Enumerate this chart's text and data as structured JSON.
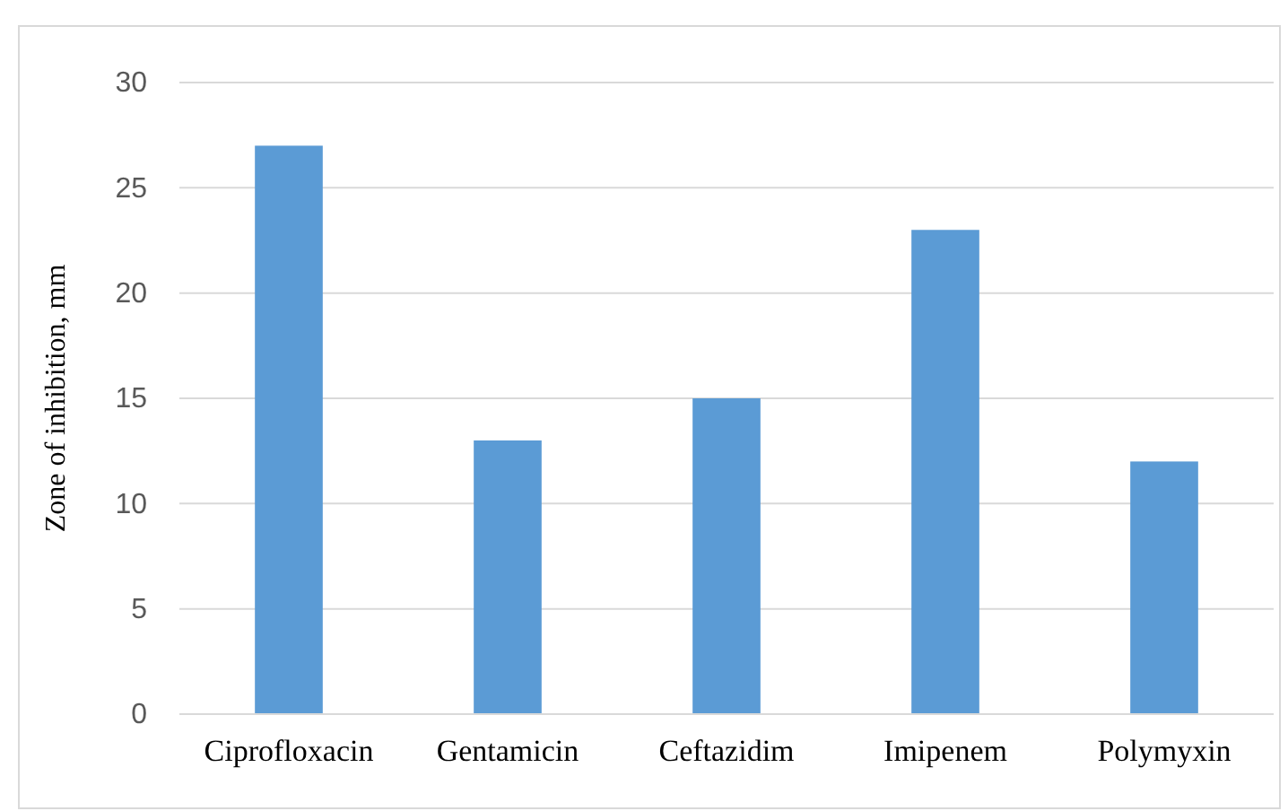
{
  "chart_data": {
    "type": "bar",
    "ylabel": "Zone of inhibition, mm",
    "categories": [
      "Ciprofloxacin",
      "Gentamicin",
      "Ceftazidim",
      "Imipenem",
      "Polymyxin"
    ],
    "values": [
      27,
      13,
      15,
      23,
      12
    ],
    "color": "#5b9bd5",
    "ylim": [
      0,
      30
    ],
    "yticks": [
      0,
      5,
      10,
      15,
      20,
      25,
      30
    ],
    "grid": "y"
  }
}
